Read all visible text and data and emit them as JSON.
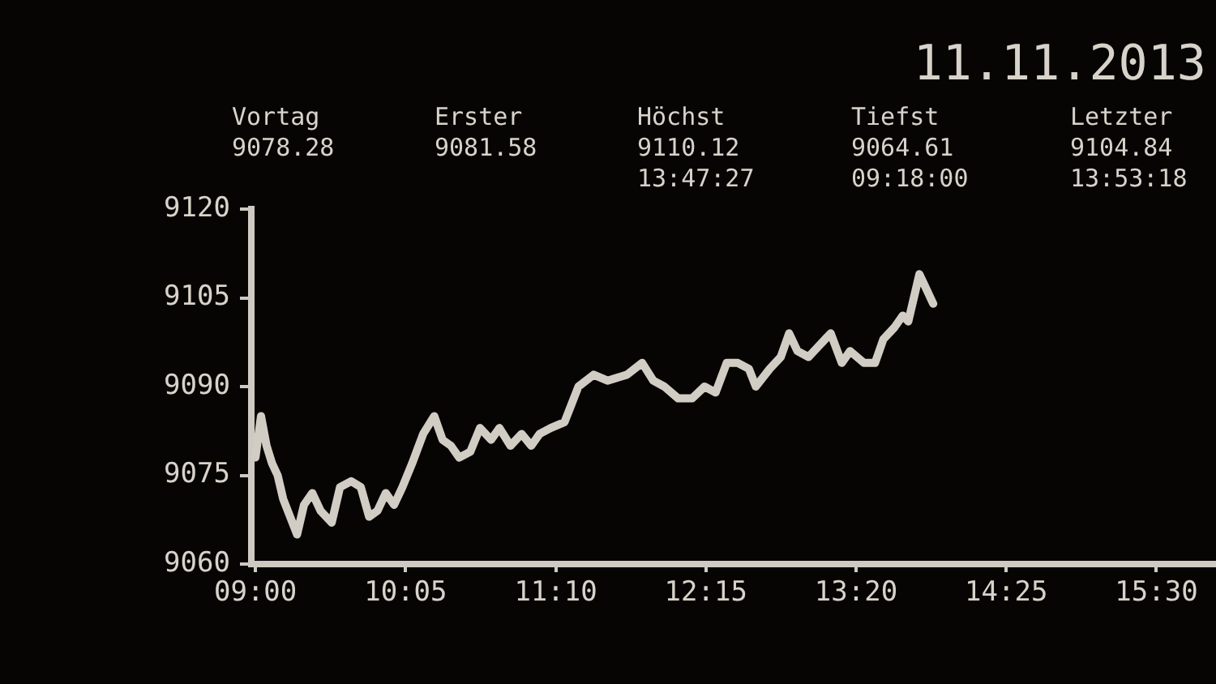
{
  "chart_data": {
    "type": "line",
    "title": "11.11.2013",
    "annotations": [
      "Vortag\n9078.28",
      "Erster\n9081.58",
      "Höchst\n9110.12\n13:47:27",
      "Tiefst\n9064.61\n09:18:00",
      "Letzter\n9104.84\n13:53:18"
    ],
    "x": [
      9.0,
      9.04,
      9.08,
      9.12,
      9.16,
      9.2,
      9.3,
      9.35,
      9.41,
      9.47,
      9.55,
      9.61,
      9.69,
      9.76,
      9.82,
      9.88,
      9.94,
      10.0,
      10.06,
      10.13,
      10.21,
      10.29,
      10.35,
      10.41,
      10.47,
      10.55,
      10.62,
      10.7,
      10.76,
      10.84,
      10.92,
      10.99,
      11.05,
      11.13,
      11.23,
      11.33,
      11.44,
      11.54,
      11.68,
      11.79,
      11.87,
      11.95,
      12.05,
      12.15,
      12.24,
      12.32,
      12.4,
      12.48,
      12.56,
      12.61,
      12.71,
      12.79,
      12.85,
      12.91,
      12.99,
      13.07,
      13.15,
      13.23,
      13.29,
      13.39,
      13.47,
      13.53,
      13.61,
      13.67,
      13.71,
      13.79,
      13.83,
      13.89
    ],
    "values": [
      9078,
      9085,
      9080,
      9077,
      9075,
      9071,
      9065,
      9070,
      9072,
      9069,
      9067,
      9073,
      9074,
      9073,
      9068,
      9069,
      9072,
      9070,
      9073,
      9077,
      9082,
      9085,
      9081,
      9080,
      9078,
      9079,
      9083,
      9081,
      9083,
      9080,
      9082,
      9080,
      9082,
      9083,
      9084,
      9090,
      9092,
      9091,
      9092,
      9094,
      9091,
      9090,
      9088,
      9088,
      9090,
      9089,
      9094,
      9094,
      9093,
      9090,
      9093,
      9095,
      9099,
      9096,
      9095,
      9097,
      9099,
      9094,
      9096,
      9094,
      9094,
      9098,
      9100,
      9102,
      9101,
      9109,
      9107,
      9104
    ],
    "color": "#d2cdc4",
    "xlim": [
      8.97,
      15.93
    ],
    "xticks": [
      {
        "value": 9,
        "label": "09:00"
      },
      {
        "value": 10.0833,
        "label": "10:05"
      },
      {
        "value": 11.1667,
        "label": "11:10"
      },
      {
        "value": 12.25,
        "label": "12:15"
      },
      {
        "value": 13.3333,
        "label": "13:20"
      },
      {
        "value": 14.4167,
        "label": "14:25"
      },
      {
        "value": 15.5,
        "label": "15:30"
      }
    ],
    "ylim": [
      9060,
      9120
    ],
    "yticks": [
      9060,
      9075,
      9090,
      9105,
      9120
    ],
    "line_style": "solid"
  }
}
